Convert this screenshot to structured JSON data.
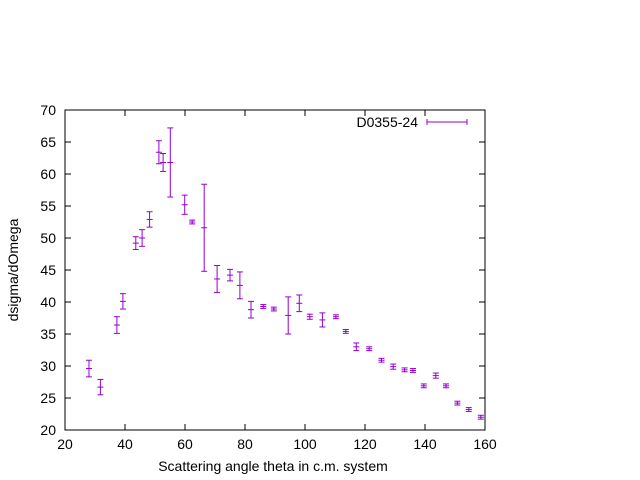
{
  "chart_data": {
    "type": "scatter",
    "title": "",
    "xlabel": "Scattering angle theta in c.m. system",
    "ylabel": "dsigma/dOmega",
    "xlim": [
      20,
      160
    ],
    "ylim": [
      20,
      70
    ],
    "xticks": [
      20,
      40,
      60,
      80,
      100,
      120,
      140,
      160
    ],
    "yticks": [
      20,
      25,
      30,
      35,
      40,
      45,
      50,
      55,
      60,
      65,
      70
    ],
    "grid": false,
    "legend_position": "top-right",
    "series": [
      {
        "name": "D0355-24",
        "color": "#9400d3",
        "style": "yerrorbars",
        "points": [
          {
            "x": 28.0,
            "y": 29.6,
            "err": 1.3
          },
          {
            "x": 31.8,
            "y": 26.7,
            "err": 1.2
          },
          {
            "x": 37.3,
            "y": 36.4,
            "err": 1.3
          },
          {
            "x": 39.3,
            "y": 40.1,
            "err": 1.2
          },
          {
            "x": 43.6,
            "y": 49.2,
            "err": 1.0
          },
          {
            "x": 45.7,
            "y": 50.0,
            "err": 1.3
          },
          {
            "x": 48.2,
            "y": 52.9,
            "err": 1.2
          },
          {
            "x": 51.3,
            "y": 63.4,
            "err": 1.8
          },
          {
            "x": 52.7,
            "y": 61.8,
            "err": 1.4
          },
          {
            "x": 55.1,
            "y": 61.8,
            "err": 5.4
          },
          {
            "x": 59.9,
            "y": 55.2,
            "err": 1.5
          },
          {
            "x": 62.4,
            "y": 52.5,
            "err": 0.3
          },
          {
            "x": 66.4,
            "y": 51.6,
            "err": 6.8
          },
          {
            "x": 70.7,
            "y": 43.6,
            "err": 2.1
          },
          {
            "x": 75.0,
            "y": 44.2,
            "err": 0.9
          },
          {
            "x": 78.3,
            "y": 42.6,
            "err": 2.1
          },
          {
            "x": 82.0,
            "y": 38.8,
            "err": 1.3
          },
          {
            "x": 86.1,
            "y": 39.3,
            "err": 0.3
          },
          {
            "x": 89.6,
            "y": 38.9,
            "err": 0.3
          },
          {
            "x": 94.4,
            "y": 37.9,
            "err": 2.9
          },
          {
            "x": 98.1,
            "y": 39.8,
            "err": 1.3
          },
          {
            "x": 101.6,
            "y": 37.7,
            "err": 0.4
          },
          {
            "x": 105.8,
            "y": 37.2,
            "err": 1.1
          },
          {
            "x": 110.3,
            "y": 37.7,
            "err": 0.3
          },
          {
            "x": 113.6,
            "y": 35.4,
            "err": 0.3
          },
          {
            "x": 117.1,
            "y": 33.0,
            "err": 0.6
          },
          {
            "x": 121.4,
            "y": 32.7,
            "err": 0.3
          },
          {
            "x": 125.5,
            "y": 30.9,
            "err": 0.3
          },
          {
            "x": 129.4,
            "y": 29.9,
            "err": 0.4
          },
          {
            "x": 133.2,
            "y": 29.4,
            "err": 0.3
          },
          {
            "x": 136.0,
            "y": 29.3,
            "err": 0.3
          },
          {
            "x": 139.6,
            "y": 26.9,
            "err": 0.3
          },
          {
            "x": 143.6,
            "y": 28.5,
            "err": 0.4
          },
          {
            "x": 147.0,
            "y": 26.9,
            "err": 0.3
          },
          {
            "x": 150.8,
            "y": 24.2,
            "err": 0.3
          },
          {
            "x": 154.6,
            "y": 23.2,
            "err": 0.3
          },
          {
            "x": 158.6,
            "y": 22.0,
            "err": 0.3
          }
        ]
      }
    ]
  }
}
